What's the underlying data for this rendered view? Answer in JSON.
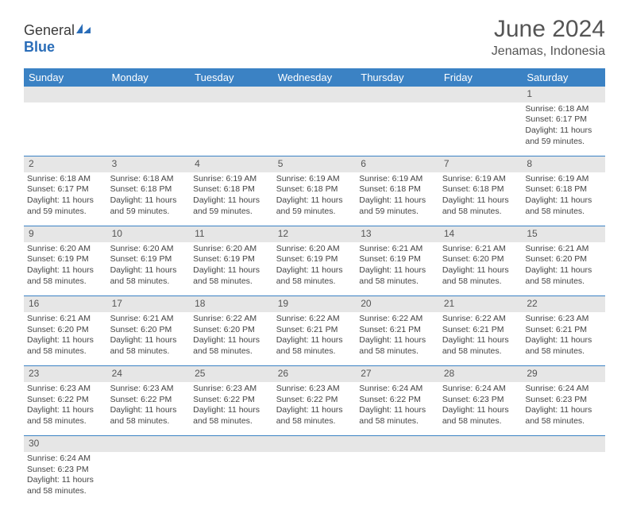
{
  "logo": {
    "text_general": "General",
    "text_blue": "Blue"
  },
  "title": "June 2024",
  "location": "Jenamas, Indonesia",
  "header_bg": "#3b82c4",
  "daynum_bg": "#e6e6e6",
  "weekdays": [
    "Sunday",
    "Monday",
    "Tuesday",
    "Wednesday",
    "Thursday",
    "Friday",
    "Saturday"
  ],
  "weeks": [
    {
      "nums": [
        "",
        "",
        "",
        "",
        "",
        "",
        "1"
      ],
      "cells": [
        null,
        null,
        null,
        null,
        null,
        null,
        {
          "sunrise": "6:18 AM",
          "sunset": "6:17 PM",
          "daylight": "11 hours and 59 minutes."
        }
      ]
    },
    {
      "nums": [
        "2",
        "3",
        "4",
        "5",
        "6",
        "7",
        "8"
      ],
      "cells": [
        {
          "sunrise": "6:18 AM",
          "sunset": "6:17 PM",
          "daylight": "11 hours and 59 minutes."
        },
        {
          "sunrise": "6:18 AM",
          "sunset": "6:18 PM",
          "daylight": "11 hours and 59 minutes."
        },
        {
          "sunrise": "6:19 AM",
          "sunset": "6:18 PM",
          "daylight": "11 hours and 59 minutes."
        },
        {
          "sunrise": "6:19 AM",
          "sunset": "6:18 PM",
          "daylight": "11 hours and 59 minutes."
        },
        {
          "sunrise": "6:19 AM",
          "sunset": "6:18 PM",
          "daylight": "11 hours and 59 minutes."
        },
        {
          "sunrise": "6:19 AM",
          "sunset": "6:18 PM",
          "daylight": "11 hours and 58 minutes."
        },
        {
          "sunrise": "6:19 AM",
          "sunset": "6:18 PM",
          "daylight": "11 hours and 58 minutes."
        }
      ]
    },
    {
      "nums": [
        "9",
        "10",
        "11",
        "12",
        "13",
        "14",
        "15"
      ],
      "cells": [
        {
          "sunrise": "6:20 AM",
          "sunset": "6:19 PM",
          "daylight": "11 hours and 58 minutes."
        },
        {
          "sunrise": "6:20 AM",
          "sunset": "6:19 PM",
          "daylight": "11 hours and 58 minutes."
        },
        {
          "sunrise": "6:20 AM",
          "sunset": "6:19 PM",
          "daylight": "11 hours and 58 minutes."
        },
        {
          "sunrise": "6:20 AM",
          "sunset": "6:19 PM",
          "daylight": "11 hours and 58 minutes."
        },
        {
          "sunrise": "6:21 AM",
          "sunset": "6:19 PM",
          "daylight": "11 hours and 58 minutes."
        },
        {
          "sunrise": "6:21 AM",
          "sunset": "6:20 PM",
          "daylight": "11 hours and 58 minutes."
        },
        {
          "sunrise": "6:21 AM",
          "sunset": "6:20 PM",
          "daylight": "11 hours and 58 minutes."
        }
      ]
    },
    {
      "nums": [
        "16",
        "17",
        "18",
        "19",
        "20",
        "21",
        "22"
      ],
      "cells": [
        {
          "sunrise": "6:21 AM",
          "sunset": "6:20 PM",
          "daylight": "11 hours and 58 minutes."
        },
        {
          "sunrise": "6:21 AM",
          "sunset": "6:20 PM",
          "daylight": "11 hours and 58 minutes."
        },
        {
          "sunrise": "6:22 AM",
          "sunset": "6:20 PM",
          "daylight": "11 hours and 58 minutes."
        },
        {
          "sunrise": "6:22 AM",
          "sunset": "6:21 PM",
          "daylight": "11 hours and 58 minutes."
        },
        {
          "sunrise": "6:22 AM",
          "sunset": "6:21 PM",
          "daylight": "11 hours and 58 minutes."
        },
        {
          "sunrise": "6:22 AM",
          "sunset": "6:21 PM",
          "daylight": "11 hours and 58 minutes."
        },
        {
          "sunrise": "6:23 AM",
          "sunset": "6:21 PM",
          "daylight": "11 hours and 58 minutes."
        }
      ]
    },
    {
      "nums": [
        "23",
        "24",
        "25",
        "26",
        "27",
        "28",
        "29"
      ],
      "cells": [
        {
          "sunrise": "6:23 AM",
          "sunset": "6:22 PM",
          "daylight": "11 hours and 58 minutes."
        },
        {
          "sunrise": "6:23 AM",
          "sunset": "6:22 PM",
          "daylight": "11 hours and 58 minutes."
        },
        {
          "sunrise": "6:23 AM",
          "sunset": "6:22 PM",
          "daylight": "11 hours and 58 minutes."
        },
        {
          "sunrise": "6:23 AM",
          "sunset": "6:22 PM",
          "daylight": "11 hours and 58 minutes."
        },
        {
          "sunrise": "6:24 AM",
          "sunset": "6:22 PM",
          "daylight": "11 hours and 58 minutes."
        },
        {
          "sunrise": "6:24 AM",
          "sunset": "6:23 PM",
          "daylight": "11 hours and 58 minutes."
        },
        {
          "sunrise": "6:24 AM",
          "sunset": "6:23 PM",
          "daylight": "11 hours and 58 minutes."
        }
      ]
    },
    {
      "nums": [
        "30",
        "",
        "",
        "",
        "",
        "",
        ""
      ],
      "cells": [
        {
          "sunrise": "6:24 AM",
          "sunset": "6:23 PM",
          "daylight": "11 hours and 58 minutes."
        },
        null,
        null,
        null,
        null,
        null,
        null
      ]
    }
  ],
  "labels": {
    "sunrise": "Sunrise:",
    "sunset": "Sunset:",
    "daylight": "Daylight:"
  }
}
